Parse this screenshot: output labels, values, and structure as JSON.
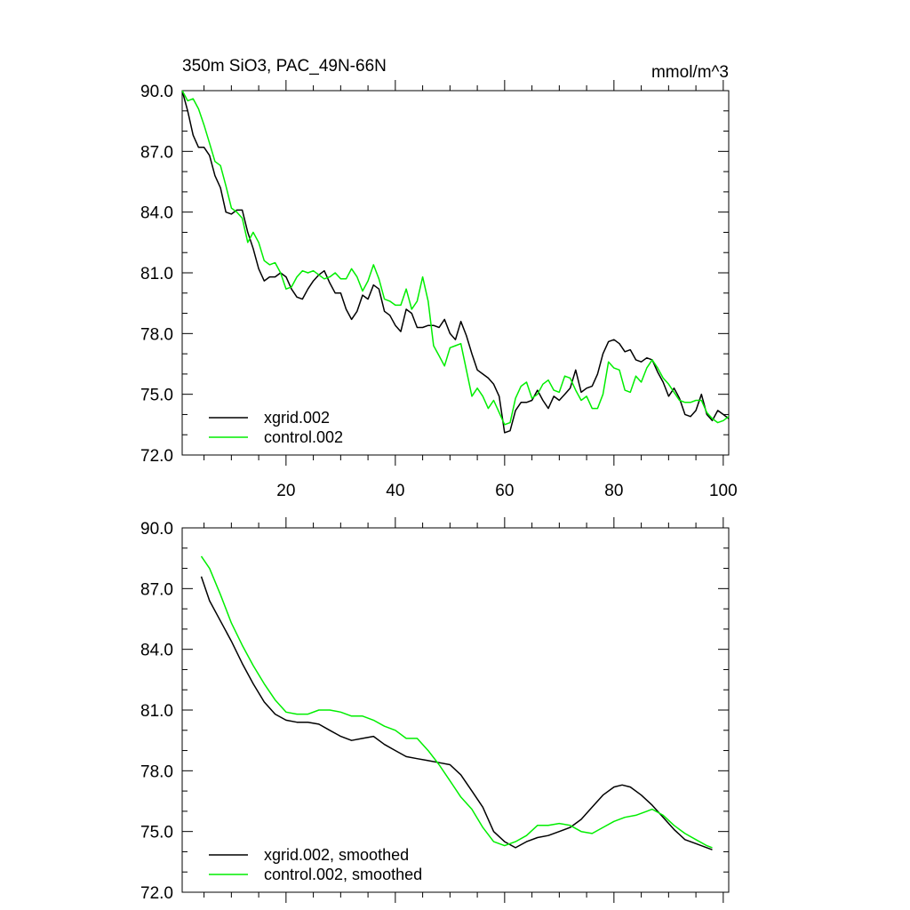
{
  "colors": {
    "xgrid": "#000000",
    "control": "#00ee00",
    "axis": "#000000",
    "background": "#ffffff"
  },
  "chart_data": [
    {
      "type": "line",
      "title": "350m SiO3, PAC_49N-66N",
      "units": "mmol/m^3",
      "xlim": [
        1,
        101
      ],
      "ylim": [
        72,
        90
      ],
      "yticks": [
        "90.0",
        "87.0",
        "84.0",
        "81.0",
        "78.0",
        "75.0",
        "72.0"
      ],
      "ytick_values": [
        90,
        87,
        84,
        81,
        78,
        75,
        72
      ],
      "xticks": [
        "20",
        "40",
        "60",
        "80",
        "100"
      ],
      "xtick_values": [
        20,
        40,
        60,
        80,
        100
      ],
      "legend_position": "bottom-left",
      "series": [
        {
          "name": "xgrid.002",
          "color_key": "xgrid",
          "x": [
            1,
            2,
            3,
            4,
            5,
            6,
            7,
            8,
            9,
            10,
            11,
            12,
            13,
            14,
            15,
            16,
            17,
            18,
            19,
            20,
            21,
            22,
            23,
            24,
            25,
            26,
            27,
            28,
            29,
            30,
            31,
            32,
            33,
            34,
            35,
            36,
            37,
            38,
            39,
            40,
            41,
            42,
            43,
            44,
            45,
            46,
            47,
            48,
            49,
            50,
            51,
            52,
            53,
            54,
            55,
            56,
            57,
            58,
            59,
            60,
            61,
            62,
            63,
            64,
            65,
            66,
            67,
            68,
            69,
            70,
            71,
            72,
            73,
            74,
            75,
            76,
            77,
            78,
            79,
            80,
            81,
            82,
            83,
            84,
            85,
            86,
            87,
            88,
            89,
            90,
            91,
            92,
            93,
            94,
            95,
            96,
            97,
            98,
            99,
            100,
            101
          ],
          "y": [
            90.0,
            89.0,
            87.8,
            87.2,
            87.2,
            86.8,
            85.8,
            85.2,
            84.0,
            83.9,
            84.1,
            84.1,
            83.0,
            82.2,
            81.2,
            80.6,
            80.8,
            80.8,
            81.0,
            80.8,
            80.2,
            79.8,
            79.7,
            80.2,
            80.6,
            80.9,
            81.1,
            80.5,
            80.0,
            80.0,
            79.2,
            78.7,
            79.1,
            79.9,
            79.7,
            80.4,
            80.2,
            79.1,
            78.9,
            78.4,
            78.1,
            79.2,
            79.0,
            78.3,
            78.3,
            78.4,
            78.4,
            78.3,
            78.7,
            78.0,
            77.7,
            78.6,
            77.9,
            77.0,
            76.2,
            76.0,
            75.8,
            75.5,
            74.9,
            73.1,
            73.2,
            74.2,
            74.6,
            74.6,
            74.7,
            75.2,
            74.7,
            74.3,
            74.9,
            74.7,
            75.0,
            75.3,
            76.2,
            75.1,
            75.3,
            75.4,
            76.0,
            77.0,
            77.6,
            77.7,
            77.5,
            77.1,
            77.2,
            76.7,
            76.6,
            76.8,
            76.7,
            76.1,
            75.6,
            74.9,
            75.3,
            74.8,
            74.0,
            73.9,
            74.2,
            75.0,
            74.0,
            73.7,
            74.2,
            74.0,
            73.8
          ]
        },
        {
          "name": "control.002",
          "color_key": "control",
          "x": [
            1,
            2,
            3,
            4,
            5,
            6,
            7,
            8,
            9,
            10,
            11,
            12,
            13,
            14,
            15,
            16,
            17,
            18,
            19,
            20,
            21,
            22,
            23,
            24,
            25,
            26,
            27,
            28,
            29,
            30,
            31,
            32,
            33,
            34,
            35,
            36,
            37,
            38,
            39,
            40,
            41,
            42,
            43,
            44,
            45,
            46,
            47,
            48,
            49,
            50,
            51,
            52,
            53,
            54,
            55,
            56,
            57,
            58,
            59,
            60,
            61,
            62,
            63,
            64,
            65,
            66,
            67,
            68,
            69,
            70,
            71,
            72,
            73,
            74,
            75,
            76,
            77,
            78,
            79,
            80,
            81,
            82,
            83,
            84,
            85,
            86,
            87,
            88,
            89,
            90,
            91,
            92,
            93,
            94,
            95,
            96,
            97,
            98,
            99,
            100,
            101
          ],
          "y": [
            90.0,
            89.5,
            89.6,
            89.1,
            88.3,
            87.4,
            86.5,
            86.3,
            85.3,
            84.2,
            84.0,
            83.7,
            82.5,
            83.0,
            82.5,
            81.6,
            81.4,
            81.5,
            81.0,
            80.2,
            80.3,
            80.8,
            81.1,
            81.0,
            81.1,
            80.9,
            80.7,
            80.8,
            81.0,
            80.7,
            80.7,
            81.2,
            80.8,
            80.1,
            80.6,
            81.4,
            80.7,
            79.7,
            79.6,
            79.4,
            79.4,
            80.2,
            79.2,
            79.6,
            80.8,
            79.6,
            77.4,
            76.9,
            76.4,
            77.3,
            77.4,
            77.5,
            76.2,
            74.9,
            75.3,
            74.9,
            74.3,
            74.7,
            74.1,
            73.5,
            73.6,
            74.8,
            75.4,
            75.6,
            74.8,
            75.0,
            75.5,
            75.7,
            75.2,
            75.1,
            75.9,
            75.8,
            75.2,
            74.7,
            74.9,
            74.3,
            74.3,
            75.0,
            76.6,
            76.3,
            76.2,
            75.2,
            75.1,
            75.9,
            75.6,
            76.3,
            76.7,
            76.3,
            75.8,
            75.5,
            75.1,
            74.7,
            74.6,
            74.6,
            74.7,
            74.7,
            74.1,
            73.8,
            73.6,
            73.7,
            73.9
          ]
        }
      ]
    },
    {
      "type": "line",
      "title": "",
      "units": "",
      "xlim": [
        1,
        101
      ],
      "ylim": [
        72,
        90
      ],
      "yticks": [
        "90.0",
        "87.0",
        "84.0",
        "81.0",
        "78.0",
        "75.0",
        "72.0"
      ],
      "ytick_values": [
        90,
        87,
        84,
        81,
        78,
        75,
        72
      ],
      "xticks": [],
      "xtick_values": [
        20,
        40,
        60,
        80,
        100
      ],
      "legend_position": "bottom-left",
      "series": [
        {
          "name": "xgrid.002, smoothed",
          "color_key": "xgrid",
          "x": [
            4.5,
            6,
            8,
            10,
            12,
            14,
            16,
            18,
            20,
            22,
            24,
            26,
            28,
            30,
            32,
            34,
            36,
            38,
            40,
            42,
            44,
            46,
            48,
            50,
            52,
            54,
            56,
            58,
            60,
            62,
            64,
            66,
            68,
            70,
            72,
            74,
            76,
            78,
            80,
            81.5,
            83,
            85,
            87,
            89,
            91,
            93,
            95,
            97,
            98
          ],
          "y": [
            87.6,
            86.4,
            85.4,
            84.4,
            83.3,
            82.3,
            81.4,
            80.8,
            80.5,
            80.4,
            80.4,
            80.3,
            80.0,
            79.7,
            79.5,
            79.6,
            79.7,
            79.3,
            79.0,
            78.7,
            78.6,
            78.5,
            78.4,
            78.3,
            77.8,
            77.0,
            76.2,
            75.0,
            74.5,
            74.2,
            74.5,
            74.7,
            74.8,
            75.0,
            75.2,
            75.6,
            76.2,
            76.8,
            77.2,
            77.3,
            77.2,
            76.8,
            76.3,
            75.7,
            75.1,
            74.6,
            74.4,
            74.2,
            74.1
          ]
        },
        {
          "name": "control.002, smoothed",
          "color_key": "control",
          "x": [
            4.5,
            6,
            8,
            10,
            12,
            14,
            16,
            18,
            20,
            22,
            24,
            26,
            28,
            30,
            32,
            34,
            36,
            38,
            40,
            42,
            44,
            46,
            48,
            50,
            52,
            54,
            56,
            58,
            60,
            62,
            64,
            66,
            68,
            70,
            72,
            74,
            76,
            78,
            80,
            82,
            84,
            86,
            87,
            89,
            91,
            93,
            95,
            97,
            98
          ],
          "y": [
            88.6,
            88.0,
            86.7,
            85.3,
            84.2,
            83.2,
            82.3,
            81.5,
            80.9,
            80.8,
            80.8,
            81.0,
            81.0,
            80.9,
            80.7,
            80.7,
            80.5,
            80.2,
            80.0,
            79.6,
            79.6,
            79.0,
            78.3,
            77.5,
            76.7,
            76.1,
            75.2,
            74.5,
            74.3,
            74.5,
            74.8,
            75.3,
            75.3,
            75.4,
            75.3,
            75.0,
            74.9,
            75.2,
            75.5,
            75.7,
            75.8,
            76.0,
            76.1,
            75.8,
            75.3,
            74.9,
            74.6,
            74.3,
            74.2
          ]
        }
      ]
    }
  ]
}
